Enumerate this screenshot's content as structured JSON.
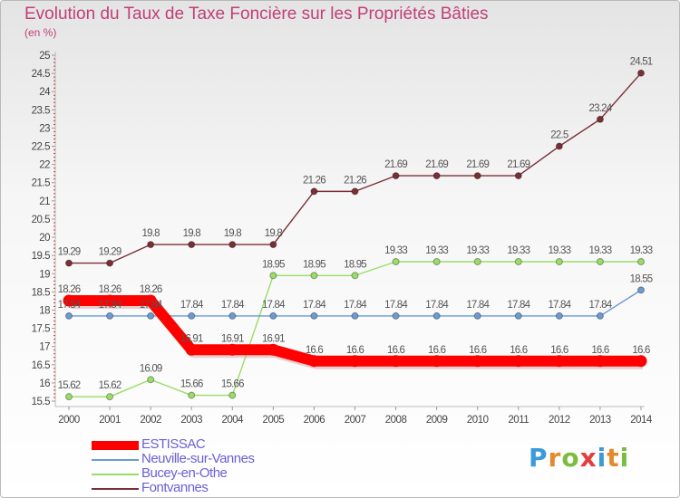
{
  "chart_data": {
    "type": "line",
    "title": "Evolution du Taux de Taxe Foncière sur les Propriétés Bâties",
    "unit_label": "(en %)",
    "xlabel": "",
    "ylabel": "",
    "x": [
      "2000",
      "2001",
      "2002",
      "2003",
      "2004",
      "2005",
      "2006",
      "2007",
      "2008",
      "2009",
      "2010",
      "2011",
      "2012",
      "2013",
      "2014"
    ],
    "ylim": [
      15.5,
      25
    ],
    "y_ticks": [
      "15.5",
      "16",
      "16.5",
      "17",
      "17.5",
      "18",
      "18.5",
      "19",
      "19.5",
      "20",
      "20.5",
      "21",
      "21.5",
      "22",
      "22.5",
      "23",
      "23.5",
      "24",
      "24.5",
      "25"
    ],
    "grid": false,
    "legend_position": "bottom-left",
    "series": [
      {
        "name": "ESTISSAC",
        "color": "#ff0000",
        "values": [
          18.26,
          18.26,
          18.26,
          16.91,
          16.91,
          16.91,
          16.6,
          16.6,
          16.6,
          16.6,
          16.6,
          16.6,
          16.6,
          16.6,
          16.6
        ],
        "labels": [
          "18.26",
          "18.26",
          "18.26",
          "16.91",
          "16.91",
          "16.91",
          "16.6",
          "16.6",
          "16.6",
          "16.6",
          "16.6",
          "16.6",
          "16.6",
          "16.6",
          "16.6"
        ]
      },
      {
        "name": "Neuville-sur-Vannes",
        "color": "#6a9bd1",
        "values": [
          17.84,
          17.84,
          17.84,
          17.84,
          17.84,
          17.84,
          17.84,
          17.84,
          17.84,
          17.84,
          17.84,
          17.84,
          17.84,
          17.84,
          18.55
        ],
        "labels": [
          "17.84",
          "17.84",
          "17.84",
          "17.84",
          "17.84",
          "17.84",
          "17.84",
          "17.84",
          "17.84",
          "17.84",
          "17.84",
          "17.84",
          "17.84",
          "17.84",
          "18.55"
        ]
      },
      {
        "name": "Bucey-en-Othe",
        "color": "#99dd66",
        "values": [
          15.62,
          15.62,
          16.09,
          15.66,
          15.66,
          18.95,
          18.95,
          18.95,
          19.33,
          19.33,
          19.33,
          19.33,
          19.33,
          19.33,
          19.33
        ],
        "labels": [
          "15.62",
          "15.62",
          "16.09",
          "15.66",
          "15.66",
          "18.95",
          "18.95",
          "18.95",
          "19.33",
          "19.33",
          "19.33",
          "19.33",
          "19.33",
          "19.33",
          "19.33"
        ]
      },
      {
        "name": "Fontvannes",
        "color": "#7a2e36",
        "values": [
          19.29,
          19.29,
          19.8,
          19.8,
          19.8,
          19.8,
          21.26,
          21.26,
          21.69,
          21.69,
          21.69,
          21.69,
          22.5,
          23.24,
          24.51
        ],
        "labels": [
          "19.29",
          "19.29",
          "19.8",
          "19.8",
          "19.8",
          "19.8",
          "21.26",
          "21.26",
          "21.69",
          "21.69",
          "21.69",
          "21.69",
          "22.5",
          "23.24",
          "24.51"
        ]
      }
    ]
  },
  "brand": {
    "logo_text": "Proxiti",
    "logo_letters": [
      "P",
      "r",
      "o",
      "x",
      "i",
      "t",
      "i"
    ],
    "logo_colors": [
      "#3b9ad9",
      "#e48a2e",
      "#7bbd3f",
      "#e33e3e",
      "#3b9ad9",
      "#e48a2e",
      "#7bbd3f"
    ]
  }
}
